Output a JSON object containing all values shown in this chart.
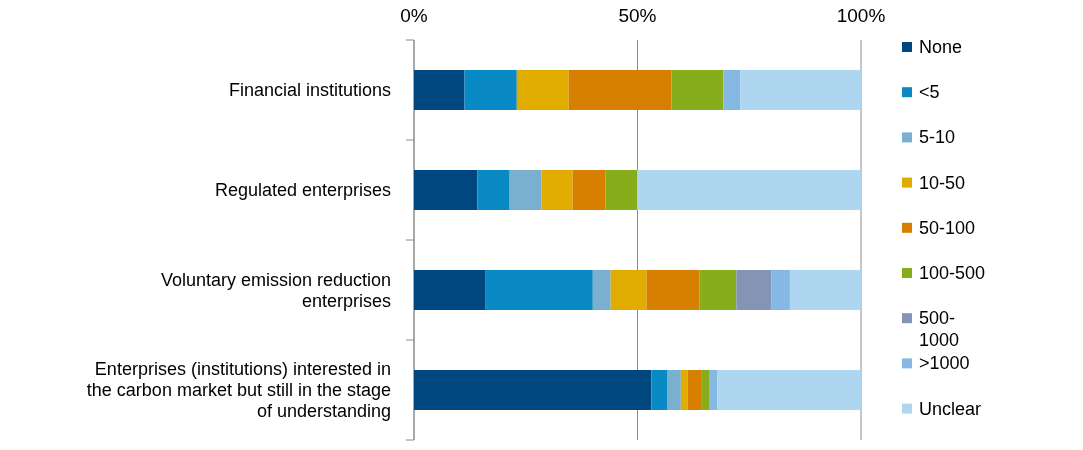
{
  "chart_data": {
    "type": "bar",
    "orientation": "horizontal",
    "stacked": true,
    "categories": [
      "Financial institutions",
      "Regulated enterprises",
      "Voluntary emission reduction enterprises",
      "Enterprises (institutions) interested in the carbon market but still in the stage of understanding"
    ],
    "series": [
      {
        "name": "None",
        "color": "#00477f",
        "values": [
          11.3,
          14.2,
          15.9,
          53.1
        ]
      },
      {
        "name": "<5",
        "color": "#0a8ac4",
        "values": [
          11.7,
          7.2,
          24.1,
          3.5
        ]
      },
      {
        "name": "5-10",
        "color": "#7aafd0",
        "values": [
          0,
          7.1,
          4.0,
          3.1
        ]
      },
      {
        "name": "10-50",
        "color": "#e0ac00",
        "values": [
          11.6,
          7.0,
          8.0,
          1.5
        ]
      },
      {
        "name": "50-100",
        "color": "#d67f00",
        "values": [
          23.0,
          7.3,
          11.9,
          3.2
        ]
      },
      {
        "name": "100-500",
        "color": "#88ad1c",
        "values": [
          11.6,
          7.1,
          8.2,
          1.6
        ]
      },
      {
        "name": "500-1000",
        "color": "#8494b5",
        "values": [
          0,
          0,
          7.9,
          0
        ]
      },
      {
        "name": ">1000",
        "color": "#85b8e3",
        "values": [
          3.8,
          0,
          4.1,
          1.9
        ]
      },
      {
        "name": "Unclear",
        "color": "#aed6f0",
        "values": [
          27.0,
          50.1,
          15.9,
          32.1
        ]
      }
    ],
    "xlim": [
      0,
      100
    ],
    "xticks": [
      {
        "value": 0,
        "label": "0%"
      },
      {
        "value": 50,
        "label": "50%"
      },
      {
        "value": 100,
        "label": "100%"
      }
    ],
    "grid": "x",
    "legend": "right"
  }
}
